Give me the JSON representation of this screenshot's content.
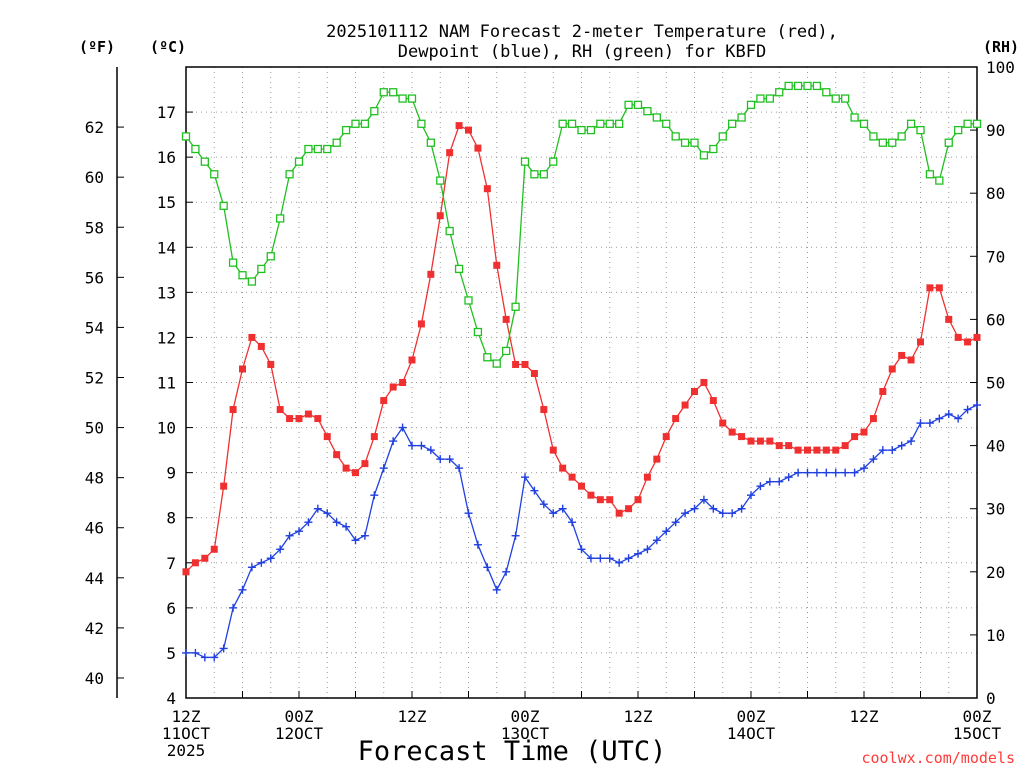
{
  "chart_data": {
    "type": "line",
    "title_line1": "2025101112 NAM Forecast 2-meter Temperature (red),",
    "title_line2": "Dewpoint (blue), RH (green) for KBFD",
    "left_outer_unit": "(ºF)",
    "left_inner_unit": "(ºC)",
    "right_unit": "(RH)",
    "xlabel": "Forecast Time (UTC)",
    "credit": "coolwx.com/models",
    "xlim": [
      0,
      84
    ],
    "celsius_lim": [
      4,
      18
    ],
    "rh_lim": [
      0,
      100
    ],
    "grid": true,
    "fahrenheit_ticks": [
      40,
      42,
      44,
      46,
      48,
      50,
      52,
      54,
      56,
      58,
      60,
      62
    ],
    "celsius_ticks": [
      4,
      5,
      6,
      7,
      8,
      9,
      10,
      11,
      12,
      13,
      14,
      15,
      16,
      17
    ],
    "rh_ticks": [
      0,
      10,
      20,
      30,
      40,
      50,
      60,
      70,
      80,
      90,
      100
    ],
    "x_ticks": [
      {
        "x": 0,
        "lines": [
          "12Z",
          "11OCT",
          "2025"
        ]
      },
      {
        "x": 12,
        "lines": [
          "00Z",
          "12OCT"
        ]
      },
      {
        "x": 24,
        "lines": [
          "12Z"
        ]
      },
      {
        "x": 36,
        "lines": [
          "00Z",
          "13OCT"
        ]
      },
      {
        "x": 48,
        "lines": [
          "12Z"
        ]
      },
      {
        "x": 60,
        "lines": [
          "00Z",
          "14OCT"
        ]
      },
      {
        "x": 72,
        "lines": [
          "12Z"
        ]
      },
      {
        "x": 84,
        "lines": [
          "00Z",
          "15OCT"
        ]
      }
    ],
    "series": [
      {
        "name": "Temperature",
        "axis": "celsius",
        "color": "#f03030",
        "marker": "filled-square",
        "x": [
          0,
          1,
          2,
          3,
          4,
          5,
          6,
          7,
          8,
          9,
          10,
          11,
          12,
          13,
          14,
          15,
          16,
          17,
          18,
          19,
          20,
          21,
          22,
          23,
          24,
          25,
          26,
          27,
          28,
          29,
          30,
          31,
          32,
          33,
          34,
          35,
          36,
          37,
          38,
          39,
          40,
          41,
          42,
          43,
          44,
          45,
          46,
          47,
          48,
          49,
          50,
          51,
          52,
          53,
          54,
          55,
          56,
          57,
          58,
          59,
          60,
          61,
          62,
          63,
          64,
          65,
          66,
          67,
          68,
          69,
          70,
          71,
          72,
          73,
          74,
          75,
          76,
          77,
          78,
          79,
          80,
          81,
          82,
          83,
          84
        ],
        "values": [
          6.8,
          7.0,
          7.1,
          7.3,
          8.7,
          10.4,
          11.3,
          12.0,
          11.8,
          11.4,
          10.4,
          10.2,
          10.2,
          10.3,
          10.2,
          9.8,
          9.4,
          9.1,
          9.0,
          9.2,
          9.8,
          10.6,
          10.9,
          11.0,
          11.5,
          12.3,
          13.4,
          14.7,
          16.1,
          16.7,
          16.6,
          16.2,
          15.3,
          13.6,
          12.4,
          11.4,
          11.4,
          11.2,
          10.4,
          9.5,
          9.1,
          8.9,
          8.7,
          8.5,
          8.4,
          8.4,
          8.1,
          8.2,
          8.4,
          8.9,
          9.3,
          9.8,
          10.2,
          10.5,
          10.8,
          11.0,
          10.6,
          10.1,
          9.9,
          9.8,
          9.7,
          9.7,
          9.7,
          9.6,
          9.6,
          9.5,
          9.5,
          9.5,
          9.5,
          9.5,
          9.6,
          9.8,
          9.9,
          10.2,
          10.8,
          11.3,
          11.6,
          11.5,
          11.9,
          13.1,
          13.1,
          12.4,
          12.0,
          11.9,
          12.0
        ]
      },
      {
        "name": "Dewpoint",
        "axis": "celsius",
        "color": "#2040e0",
        "marker": "plus",
        "x": [
          0,
          1,
          2,
          3,
          4,
          5,
          6,
          7,
          8,
          9,
          10,
          11,
          12,
          13,
          14,
          15,
          16,
          17,
          18,
          19,
          20,
          21,
          22,
          23,
          24,
          25,
          26,
          27,
          28,
          29,
          30,
          31,
          32,
          33,
          34,
          35,
          36,
          37,
          38,
          39,
          40,
          41,
          42,
          43,
          44,
          45,
          46,
          47,
          48,
          49,
          50,
          51,
          52,
          53,
          54,
          55,
          56,
          57,
          58,
          59,
          60,
          61,
          62,
          63,
          64,
          65,
          66,
          67,
          68,
          69,
          70,
          71,
          72,
          73,
          74,
          75,
          76,
          77,
          78,
          79,
          80,
          81,
          82,
          83,
          84
        ],
        "values": [
          5.0,
          5.0,
          4.9,
          4.9,
          5.1,
          6.0,
          6.4,
          6.9,
          7.0,
          7.1,
          7.3,
          7.6,
          7.7,
          7.9,
          8.2,
          8.1,
          7.9,
          7.8,
          7.5,
          7.6,
          8.5,
          9.1,
          9.7,
          10.0,
          9.6,
          9.6,
          9.5,
          9.3,
          9.3,
          9.1,
          8.1,
          7.4,
          6.9,
          6.4,
          6.8,
          7.6,
          8.9,
          8.6,
          8.3,
          8.1,
          8.2,
          7.9,
          7.3,
          7.1,
          7.1,
          7.1,
          7.0,
          7.1,
          7.2,
          7.3,
          7.5,
          7.7,
          7.9,
          8.1,
          8.2,
          8.4,
          8.2,
          8.1,
          8.1,
          8.2,
          8.5,
          8.7,
          8.8,
          8.8,
          8.9,
          9.0,
          9.0,
          9.0,
          9.0,
          9.0,
          9.0,
          9.0,
          9.1,
          9.3,
          9.5,
          9.5,
          9.6,
          9.7,
          10.1,
          10.1,
          10.2,
          10.3,
          10.2,
          10.4,
          10.5
        ]
      },
      {
        "name": "RH",
        "axis": "rh",
        "color": "#20c020",
        "marker": "open-square",
        "x": [
          0,
          1,
          2,
          3,
          4,
          5,
          6,
          7,
          8,
          9,
          10,
          11,
          12,
          13,
          14,
          15,
          16,
          17,
          18,
          19,
          20,
          21,
          22,
          23,
          24,
          25,
          26,
          27,
          28,
          29,
          30,
          31,
          32,
          33,
          34,
          35,
          36,
          37,
          38,
          39,
          40,
          41,
          42,
          43,
          44,
          45,
          46,
          47,
          48,
          49,
          50,
          51,
          52,
          53,
          54,
          55,
          56,
          57,
          58,
          59,
          60,
          61,
          62,
          63,
          64,
          65,
          66,
          67,
          68,
          69,
          70,
          71,
          72,
          73,
          74,
          75,
          76,
          77,
          78,
          79,
          80,
          81,
          82,
          83,
          84
        ],
        "values": [
          89,
          87,
          85,
          83,
          78,
          69,
          67,
          66,
          68,
          70,
          76,
          83,
          85,
          87,
          87,
          87,
          88,
          90,
          91,
          91,
          93,
          96,
          96,
          95,
          95,
          91,
          88,
          82,
          74,
          68,
          63,
          58,
          54,
          53,
          55,
          62,
          85,
          83,
          83,
          85,
          91,
          91,
          90,
          90,
          91,
          91,
          91,
          94,
          94,
          93,
          92,
          91,
          89,
          88,
          88,
          86,
          87,
          89,
          91,
          92,
          94,
          95,
          95,
          96,
          97,
          97,
          97,
          97,
          96,
          95,
          95,
          92,
          91,
          89,
          88,
          88,
          89,
          91,
          90,
          83,
          82,
          88,
          90,
          91,
          91
        ]
      }
    ]
  }
}
